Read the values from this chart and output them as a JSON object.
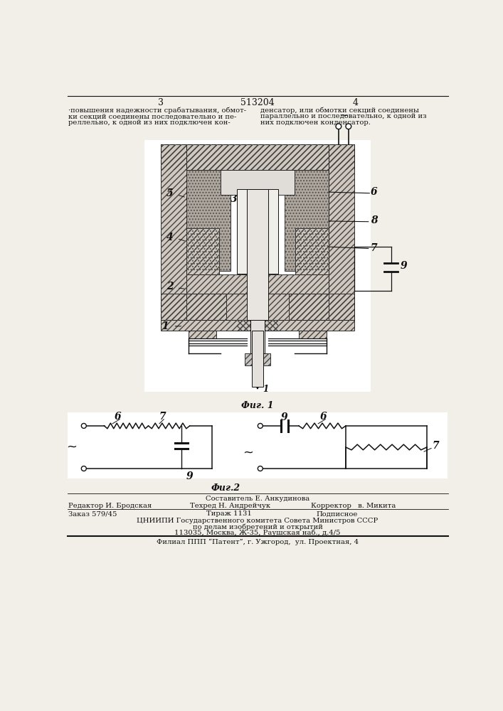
{
  "bg_color": "#f2efe9",
  "black": "#111111",
  "header_left_num": "3",
  "header_center_num": "513204",
  "header_right_num": "4",
  "col1_lines": [
    "·повышения надежности срабатывания, обмот-",
    "ки секций соединены последовательно и пе-",
    "реллельно, к одной из них подключен кон-"
  ],
  "col2_lines": [
    "денсатор, или обмотки секций соединены",
    "параллельно и последовательно, к одной из",
    "них подключен конденсатор."
  ],
  "fig1_label": "Фиг. 1",
  "fig2_label": "Фиг.2",
  "footer_author": "Составитель Е. Анкудинова",
  "footer_editor": "Редактор И. Бродская",
  "footer_tech": "Техред Н. Андрейчук",
  "footer_corrector": "Корректор   в. Микита",
  "footer_order": "Заказ 579/45",
  "footer_tirazh": "Тираж 1131",
  "footer_podpisnoe": "Подписное",
  "footer_org": "ЦНИИПИ Государственного комитета Совета Министров СССР",
  "footer_org2": "по делам изобретений и открытий",
  "footer_addr": "113035, Москва, Ж-35, Раушская наб., д.4/5",
  "footer_filial": "Филиал ППП “Патент”, г. Ужгород,  ул. Проектная, 4"
}
